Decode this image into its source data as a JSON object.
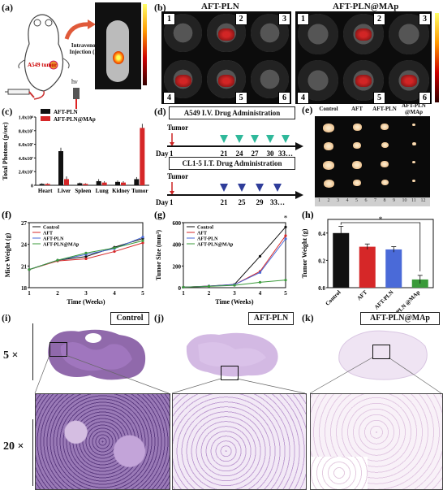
{
  "panel_a": {
    "letter": "(a)",
    "tumor_label": "A549 tumor",
    "injection_label": "Intravenous Injection (IV)",
    "hv_label": "hν"
  },
  "panel_b": {
    "letter": "(b)",
    "left_title": "AFT-PLN",
    "right_title": "AFT-PLN@MAp",
    "well_numbers": [
      "1",
      "2",
      "3",
      "4",
      "5",
      "6"
    ]
  },
  "panel_c": {
    "letter": "(c)"
  },
  "panel_d": {
    "letter": "(d)",
    "top_title": "A549 I.V. Drug Administration",
    "bottom_title": "CL1-5 I.T. Drug Administration",
    "tumor_label": "Tumor",
    "day_label": "Day",
    "day_one": "1",
    "top_days": [
      "21",
      "24",
      "27",
      "30",
      "33…"
    ],
    "bottom_days": [
      "21",
      "25",
      "29",
      "33…"
    ]
  },
  "panel_e": {
    "letter": "(e)",
    "columns": [
      "Control",
      "AFT",
      "AFT-PLN",
      "AFT-PLN @MAp"
    ],
    "ruler_numbers": [
      "1",
      "2",
      "3",
      "4",
      "5",
      "6",
      "7",
      "8",
      "9",
      "10",
      "11",
      "12"
    ]
  },
  "panel_i": {
    "letter": "(i)",
    "label": "Control"
  },
  "panel_j": {
    "letter": "(j)",
    "label": "AFT-PLN"
  },
  "panel_k": {
    "letter": "(k)",
    "label": "AFT-PLN@MAp"
  },
  "magnification": {
    "low": "5 ×",
    "high": "20 ×"
  },
  "colors": {
    "black": "#111111",
    "red": "#d62728",
    "blue": "#4a6ad8",
    "green": "#3a9a3a",
    "teal": "#2fb89a",
    "navy": "#2f3d9a"
  },
  "chart_data": [
    {
      "panel": "c",
      "type": "bar",
      "ylabel": "Total Photons (p/sec)",
      "categories": [
        "Heart",
        "Liver",
        "Spleen",
        "Lung",
        "Kidney",
        "Tumor"
      ],
      "series": [
        {
          "name": "AFT-PLN",
          "values": [
            0.02,
            0.5,
            0.03,
            0.06,
            0.05,
            0.09
          ]
        },
        {
          "name": "AFT-PLN@MAp",
          "values": [
            0.02,
            0.09,
            0.02,
            0.04,
            0.04,
            0.84
          ]
        }
      ],
      "errors": [
        [
          0.01,
          0.05,
          0.01,
          0.03,
          0.02,
          0.03
        ],
        [
          0.01,
          0.04,
          0.01,
          0.02,
          0.02,
          0.06
        ]
      ],
      "yticks": [
        "0",
        "2.0x10⁷",
        "4.0x10⁷",
        "6.0x10⁷",
        "8.0x10⁷",
        "1.0x10⁸"
      ],
      "ylim": [
        0,
        1
      ]
    },
    {
      "panel": "f",
      "type": "line",
      "xlabel": "Time (Weeks)",
      "ylabel": "Mice Weight (g)",
      "x": [
        1,
        2,
        3,
        4,
        5
      ],
      "ylim": [
        18,
        27
      ],
      "yticks": [
        18,
        21,
        24,
        27
      ],
      "series": [
        {
          "name": "Control",
          "values": [
            20.5,
            21.8,
            22.3,
            23.6,
            24.8
          ]
        },
        {
          "name": "AFT",
          "values": [
            20.5,
            21.7,
            22.0,
            23.0,
            24.2
          ]
        },
        {
          "name": "AFT-PLN",
          "values": [
            20.5,
            21.8,
            22.6,
            23.4,
            25.0
          ]
        },
        {
          "name": "AFT-PLN@MAp",
          "values": [
            20.5,
            21.8,
            22.8,
            23.5,
            24.5
          ]
        }
      ]
    },
    {
      "panel": "g",
      "type": "line",
      "xlabel": "Time (Weeks)",
      "ylabel": "Tumor Size (mm³)",
      "x": [
        1,
        2,
        3,
        4,
        5
      ],
      "ylim": [
        0,
        600
      ],
      "yticks": [
        0,
        200,
        400,
        600
      ],
      "annotation": "*",
      "series": [
        {
          "name": "Control",
          "values": [
            5,
            15,
            30,
            290,
            560
          ]
        },
        {
          "name": "AFT",
          "values": [
            5,
            14,
            28,
            150,
            480
          ]
        },
        {
          "name": "AFT-PLN",
          "values": [
            5,
            14,
            28,
            140,
            450
          ]
        },
        {
          "name": "AFT-PLN@MAp",
          "values": [
            5,
            12,
            22,
            50,
            70
          ]
        }
      ]
    },
    {
      "panel": "h",
      "type": "bar",
      "ylabel": "Tumor Weight (g)",
      "categories": [
        "Control",
        "AFT",
        "AFT-PLN",
        "AFT-PLN @MAp"
      ],
      "values": [
        0.4,
        0.3,
        0.28,
        0.06
      ],
      "errors": [
        0.05,
        0.02,
        0.02,
        0.03
      ],
      "ylim": [
        0,
        0.5
      ],
      "yticks": [
        0.0,
        0.2,
        0.4
      ],
      "annotation": "*"
    }
  ]
}
